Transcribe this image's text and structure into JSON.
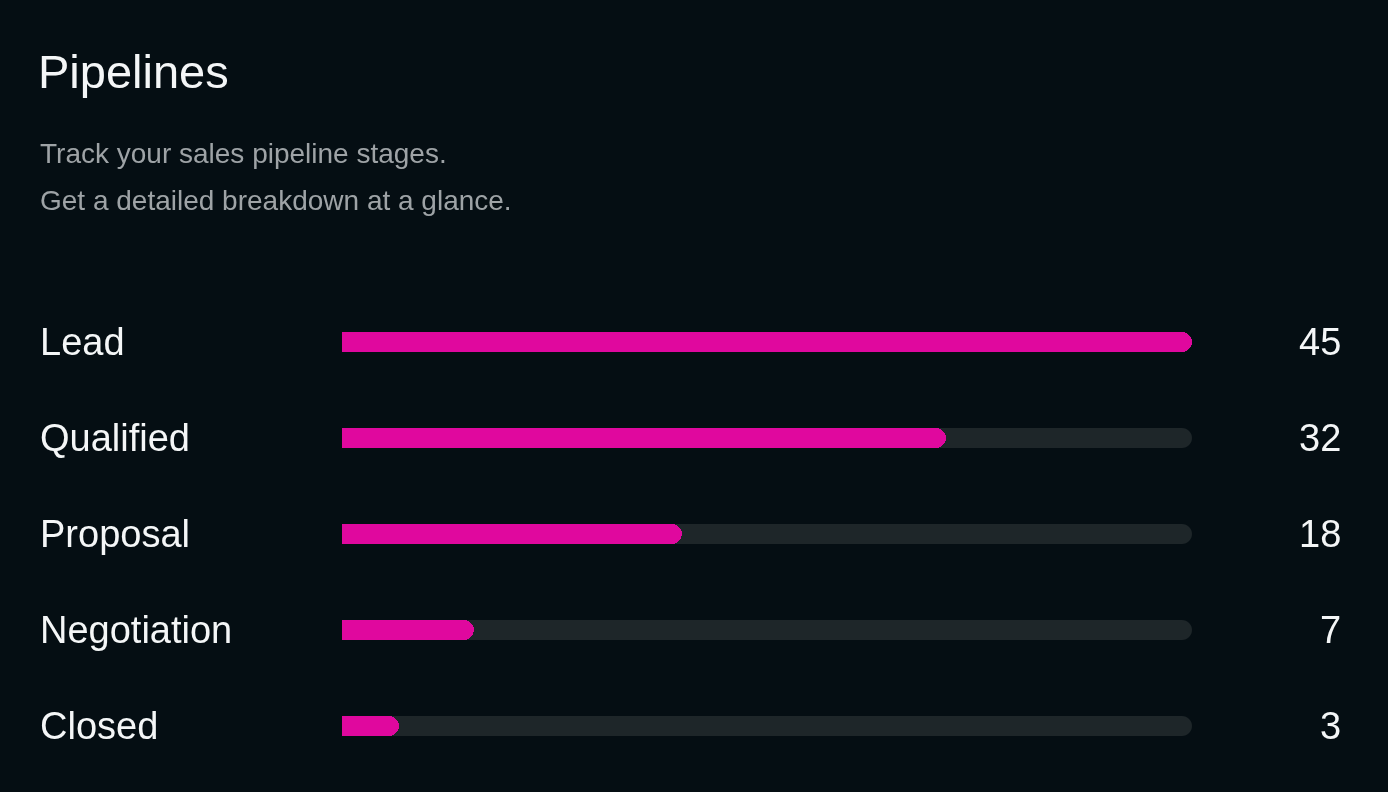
{
  "chart_data": {
    "type": "bar",
    "orientation": "horizontal",
    "title": "Pipelines",
    "subtitle": "Track your sales pipeline stages.\nGet a detailed breakdown at a glance.",
    "categories": [
      "Lead",
      "Qualified",
      "Proposal",
      "Negotiation",
      "Closed"
    ],
    "values": [
      45,
      32,
      18,
      7,
      3
    ],
    "color": "#e0089e",
    "xlim": [
      0,
      45
    ],
    "data_labels": true
  }
}
